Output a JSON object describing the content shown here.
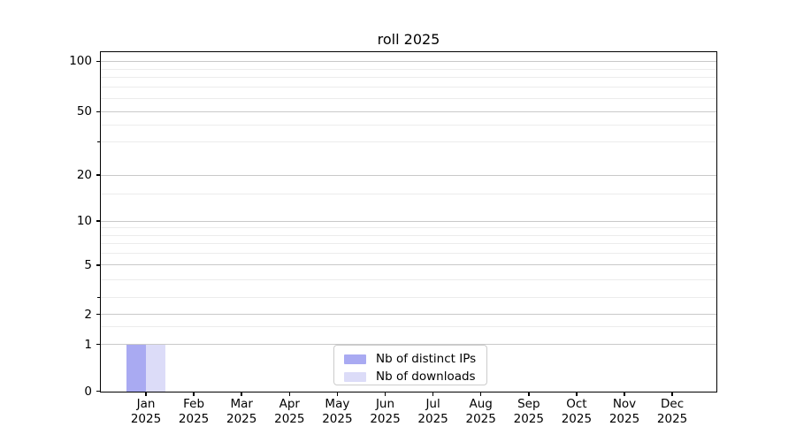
{
  "chart_data": {
    "type": "bar",
    "title": "roll 2025",
    "x_axis": {
      "categories": [
        "Jan",
        "Feb",
        "Mar",
        "Apr",
        "May",
        "Jun",
        "Jul",
        "Aug",
        "Sep",
        "Oct",
        "Nov",
        "Dec"
      ],
      "year_label": "2025"
    },
    "y_axis": {
      "major_ticks": [
        0,
        1,
        2,
        5,
        10,
        20,
        50,
        100
      ],
      "minor_tick_marks": [
        3,
        30
      ],
      "minor_gridlines": [
        1.5,
        3,
        4,
        6,
        7,
        8,
        9,
        15,
        30,
        40,
        60,
        70,
        80,
        90
      ],
      "range": [
        0,
        110
      ],
      "scale": "quasi-log",
      "grid": true,
      "scale_anchors": {
        "values": [
          0,
          1,
          2,
          3,
          5,
          10,
          20,
          30,
          50,
          100
        ],
        "fractions": [
          0,
          0.138,
          0.2266,
          0.276,
          0.3724,
          0.5026,
          0.638,
          0.737,
          0.8255,
          0.974
        ]
      }
    },
    "series": [
      {
        "name": "Nb of distinct IPs",
        "color": "#a9aaf2",
        "values": [
          1,
          0,
          0,
          0,
          0,
          0,
          0,
          0,
          0,
          0,
          0,
          0
        ]
      },
      {
        "name": "Nb of downloads",
        "color": "#dcdcf8",
        "values": [
          1,
          0,
          0,
          0,
          0,
          0,
          0,
          0,
          0,
          0,
          0,
          0
        ]
      }
    ],
    "legend": {
      "position": "lower center",
      "entries": [
        "Nb of distinct IPs",
        "Nb of downloads"
      ]
    },
    "colors": {
      "grid_major": "#c9c9c9",
      "grid_minor": "#ececec",
      "spine": "#000000",
      "background": "#ffffff",
      "legend_border": "#cccccc"
    }
  }
}
